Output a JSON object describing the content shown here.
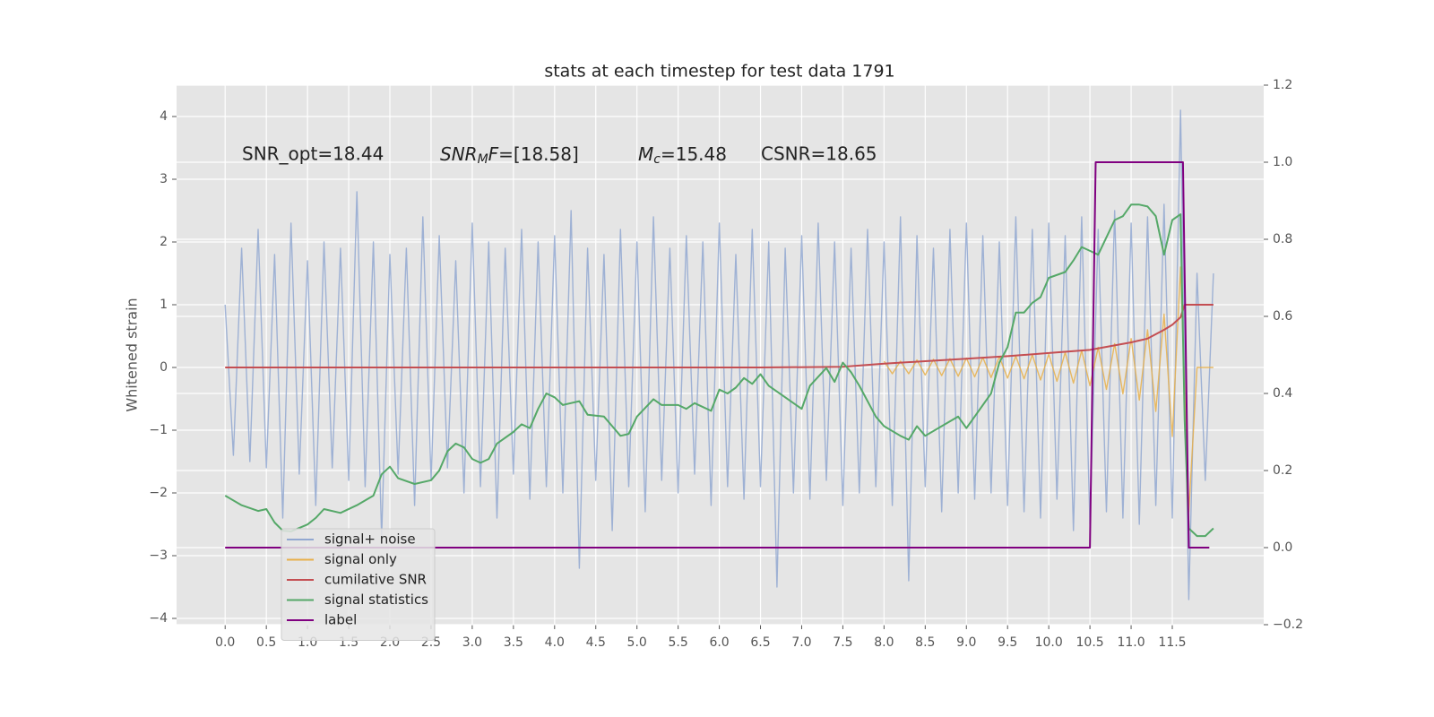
{
  "chart_data": {
    "type": "line",
    "title": "stats at each timestep for test data 1791",
    "ylabel": "Whitened strain",
    "xlim": [
      -0.59,
      12.61
    ],
    "ylim": [
      -4.1,
      4.5
    ],
    "y2lim": [
      -0.2,
      1.2
    ],
    "xticks": [
      {
        "value": 0,
        "label": "0.0"
      },
      0.5,
      {
        "value": 1,
        "label": "1.0"
      },
      1.5,
      {
        "value": 2,
        "label": "2.0"
      },
      2.5,
      {
        "value": 3,
        "label": "3.0"
      },
      3.5,
      {
        "value": 4,
        "label": "4.0"
      },
      4.5,
      {
        "value": 5,
        "label": "5.0"
      },
      5.5,
      {
        "value": 6,
        "label": "6.0"
      },
      6.5,
      {
        "value": 7,
        "label": "7.0"
      },
      7.5,
      {
        "value": 8,
        "label": "8.0"
      },
      8.5,
      {
        "value": 9,
        "label": "9.0"
      },
      9.5,
      {
        "value": 10,
        "label": "10.0"
      },
      10.5,
      {
        "value": 11,
        "label": "11.0"
      },
      11.5
    ],
    "yticks": [
      {
        "value": -4,
        "label": "−4"
      },
      {
        "value": -3,
        "label": "−3"
      },
      {
        "value": -2,
        "label": "−2"
      },
      {
        "value": -1,
        "label": "−1"
      },
      0,
      1,
      2,
      3,
      4
    ],
    "y2ticks": [
      {
        "value": -0.2,
        "label": "−0.2"
      },
      {
        "value": 0,
        "label": "0.0"
      },
      0.2,
      0.4,
      0.6,
      0.8,
      {
        "value": 1,
        "label": "1.0"
      },
      1.2
    ],
    "grid": true,
    "legend": "lower left",
    "annotations": [
      {
        "text": "SNR_opt=18.44"
      },
      {
        "math": [
          "SNR",
          "M",
          "F",
          "=[18.58]"
        ]
      },
      {
        "math": [
          "M",
          "c",
          "=15.48"
        ]
      },
      {
        "text": "CSNR=18.65"
      }
    ],
    "series": [
      {
        "name": "signal+ noise",
        "color": "#92a8d1",
        "axis": "y",
        "x": [
          0,
          0.1,
          0.2,
          0.3,
          0.4,
          0.5,
          0.6,
          0.7,
          0.8,
          0.9,
          1,
          1.1,
          1.2,
          1.3,
          1.4,
          1.5,
          1.6,
          1.7,
          1.8,
          1.9,
          2,
          2.1,
          2.2,
          2.3,
          2.4,
          2.5,
          2.6,
          2.7,
          2.8,
          2.9,
          3,
          3.1,
          3.2,
          3.3,
          3.4,
          3.5,
          3.6,
          3.7,
          3.8,
          3.9,
          4,
          4.1,
          4.2,
          4.3,
          4.4,
          4.5,
          4.6,
          4.7,
          4.8,
          4.9,
          5,
          5.1,
          5.2,
          5.3,
          5.4,
          5.5,
          5.6,
          5.7,
          5.8,
          5.9,
          6,
          6.1,
          6.2,
          6.3,
          6.4,
          6.5,
          6.6,
          6.7,
          6.8,
          6.9,
          7,
          7.1,
          7.2,
          7.3,
          7.4,
          7.5,
          7.6,
          7.7,
          7.8,
          7.9,
          8,
          8.1,
          8.2,
          8.3,
          8.4,
          8.5,
          8.6,
          8.7,
          8.8,
          8.9,
          9,
          9.1,
          9.2,
          9.3,
          9.4,
          9.5,
          9.6,
          9.7,
          9.8,
          9.9,
          10,
          10.1,
          10.2,
          10.3,
          10.4,
          10.5,
          10.6,
          10.7,
          10.8,
          10.9,
          11,
          11.1,
          11.2,
          11.3,
          11.4,
          11.5,
          11.6,
          11.7,
          11.8,
          11.9,
          12
        ],
        "values": [
          1.0,
          -1.4,
          1.9,
          -1.5,
          2.2,
          -1.6,
          1.8,
          -2.4,
          2.3,
          -1.7,
          1.7,
          -2.2,
          2.0,
          -1.6,
          1.9,
          -1.8,
          2.8,
          -1.9,
          2.0,
          -2.7,
          1.8,
          -1.7,
          1.9,
          -2.2,
          2.4,
          -1.8,
          2.1,
          -1.6,
          1.7,
          -2.0,
          2.3,
          -1.9,
          2.0,
          -2.4,
          1.9,
          -1.7,
          2.2,
          -2.1,
          2.0,
          -1.9,
          2.1,
          -2.0,
          2.5,
          -3.2,
          1.9,
          -1.8,
          1.8,
          -2.6,
          2.2,
          -1.9,
          2.0,
          -2.3,
          2.4,
          -1.8,
          1.9,
          -2.0,
          2.1,
          -1.7,
          2.0,
          -2.2,
          2.3,
          -1.9,
          1.8,
          -2.1,
          2.2,
          -1.9,
          2.0,
          -3.5,
          1.9,
          -2.0,
          2.1,
          -2.1,
          2.3,
          -1.8,
          2.0,
          -2.2,
          1.9,
          -2.0,
          2.2,
          -1.9,
          2.0,
          -2.2,
          2.4,
          -3.4,
          2.1,
          -1.9,
          1.9,
          -2.3,
          2.2,
          -2.0,
          2.3,
          -2.1,
          2.1,
          -2.0,
          2.0,
          -2.2,
          2.4,
          -2.3,
          2.2,
          -2.4,
          2.3,
          -2.1,
          2.1,
          -2.6,
          2.4,
          -2.5,
          2.2,
          -2.3,
          2.5,
          -2.4,
          2.3,
          -2.5,
          2.4,
          -2.2,
          2.6,
          -2.4,
          4.1,
          -3.7,
          1.5,
          -1.8,
          1.5
        ]
      },
      {
        "name": "signal only",
        "color": "#e8b04a",
        "axis": "y",
        "x": [
          8,
          8.1,
          8.2,
          8.3,
          8.4,
          8.5,
          8.6,
          8.7,
          8.8,
          8.9,
          9,
          9.1,
          9.2,
          9.3,
          9.4,
          9.5,
          9.6,
          9.7,
          9.8,
          9.9,
          10,
          10.1,
          10.2,
          10.3,
          10.4,
          10.5,
          10.6,
          10.7,
          10.8,
          10.9,
          11,
          11.1,
          11.2,
          11.3,
          11.4,
          11.5,
          11.6,
          11.7,
          11.8,
          11.9,
          12
        ],
        "values": [
          0.1,
          -0.1,
          0.1,
          -0.1,
          0.12,
          -0.12,
          0.13,
          -0.13,
          0.14,
          -0.14,
          0.15,
          -0.15,
          0.16,
          -0.16,
          0.17,
          -0.17,
          0.18,
          -0.18,
          0.2,
          -0.2,
          0.21,
          -0.22,
          0.24,
          -0.25,
          0.27,
          -0.29,
          0.32,
          -0.35,
          0.38,
          -0.42,
          0.46,
          -0.52,
          0.6,
          -0.7,
          0.85,
          -1.1,
          1.6,
          -2.3,
          0,
          0,
          0
        ]
      },
      {
        "name": "cumilative SNR",
        "color": "#c44e52",
        "axis": "y",
        "x": [
          0,
          6.5,
          7.5,
          8,
          8.5,
          9,
          9.5,
          10,
          10.5,
          11,
          11.2,
          11.4,
          11.5,
          11.6,
          11.65,
          12
        ],
        "values": [
          0,
          0,
          0.01,
          0.06,
          0.1,
          0.14,
          0.18,
          0.23,
          0.28,
          0.4,
          0.46,
          0.6,
          0.68,
          0.8,
          1.0,
          1.0
        ]
      },
      {
        "name": "signal statistics",
        "color": "#55a868",
        "axis": "y2",
        "x": [
          0,
          0.2,
          0.4,
          0.5,
          0.6,
          0.7,
          0.8,
          1,
          1.1,
          1.2,
          1.4,
          1.6,
          1.8,
          1.9,
          2,
          2.1,
          2.3,
          2.5,
          2.6,
          2.7,
          2.8,
          2.9,
          3,
          3.1,
          3.2,
          3.3,
          3.5,
          3.6,
          3.7,
          3.8,
          3.9,
          4,
          4.1,
          4.3,
          4.4,
          4.6,
          4.7,
          4.8,
          4.9,
          5,
          5.2,
          5.3,
          5.5,
          5.6,
          5.7,
          5.9,
          6,
          6.1,
          6.2,
          6.3,
          6.4,
          6.5,
          6.6,
          6.8,
          7,
          7.1,
          7.3,
          7.4,
          7.5,
          7.6,
          7.7,
          7.9,
          8,
          8.2,
          8.3,
          8.4,
          8.5,
          8.7,
          8.9,
          9,
          9.1,
          9.3,
          9.4,
          9.5,
          9.6,
          9.7,
          9.8,
          9.9,
          10,
          10.2,
          10.3,
          10.4,
          10.5,
          10.6,
          10.8,
          10.9,
          11,
          11.1,
          11.2,
          11.3,
          11.4,
          11.5,
          11.6,
          11.65,
          11.7,
          11.8,
          11.9,
          12
        ],
        "values": [
          0.135,
          0.11,
          0.095,
          0.1,
          0.065,
          0.044,
          0.042,
          0.06,
          0.077,
          0.1,
          0.09,
          0.11,
          0.135,
          0.19,
          0.21,
          0.18,
          0.165,
          0.175,
          0.2,
          0.25,
          0.27,
          0.26,
          0.23,
          0.22,
          0.23,
          0.27,
          0.3,
          0.32,
          0.31,
          0.36,
          0.4,
          0.39,
          0.37,
          0.38,
          0.345,
          0.34,
          0.315,
          0.29,
          0.295,
          0.34,
          0.385,
          0.37,
          0.37,
          0.36,
          0.375,
          0.355,
          0.41,
          0.4,
          0.415,
          0.44,
          0.425,
          0.45,
          0.42,
          0.39,
          0.36,
          0.42,
          0.466,
          0.43,
          0.48,
          0.455,
          0.42,
          0.34,
          0.315,
          0.29,
          0.28,
          0.315,
          0.29,
          0.315,
          0.34,
          0.31,
          0.34,
          0.4,
          0.48,
          0.52,
          0.61,
          0.61,
          0.635,
          0.65,
          0.7,
          0.715,
          0.745,
          0.78,
          0.77,
          0.76,
          0.85,
          0.86,
          0.89,
          0.89,
          0.885,
          0.86,
          0.76,
          0.85,
          0.865,
          0.33,
          0.05,
          0.03,
          0.03,
          0.05
        ]
      },
      {
        "name": "label",
        "color": "#800080",
        "axis": "y2",
        "x": [
          0,
          10.5,
          10.57,
          11.63,
          11.7,
          11.95
        ],
        "values": [
          0,
          0,
          1,
          1,
          0,
          0
        ]
      }
    ]
  }
}
